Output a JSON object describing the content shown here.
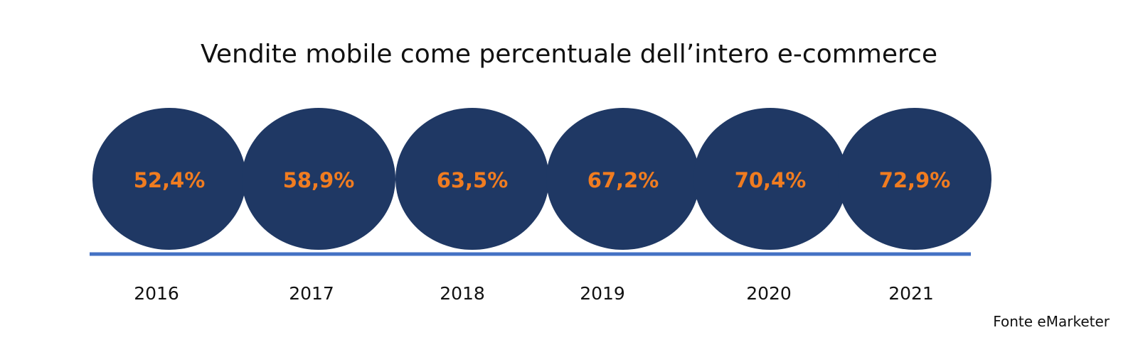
{
  "chart_data": {
    "type": "bubble-timeline",
    "title": "Vendite mobile come percentuale dell’intero e-commerce",
    "categories": [
      "2016",
      "2017",
      "2018",
      "2019",
      "2020",
      "2021"
    ],
    "values": [
      52.4,
      58.9,
      63.5,
      67.2,
      70.4,
      72.9
    ],
    "value_labels": [
      "52,4%",
      "58,9%",
      "63,5%",
      "67,2%",
      "70,4%",
      "72,9%"
    ],
    "unit": "%",
    "source": "Fonte eMarketer"
  },
  "colors": {
    "circle": "#1f3864",
    "value_text": "#f07c20",
    "baseline": "#4472c4",
    "text": "#111111"
  }
}
